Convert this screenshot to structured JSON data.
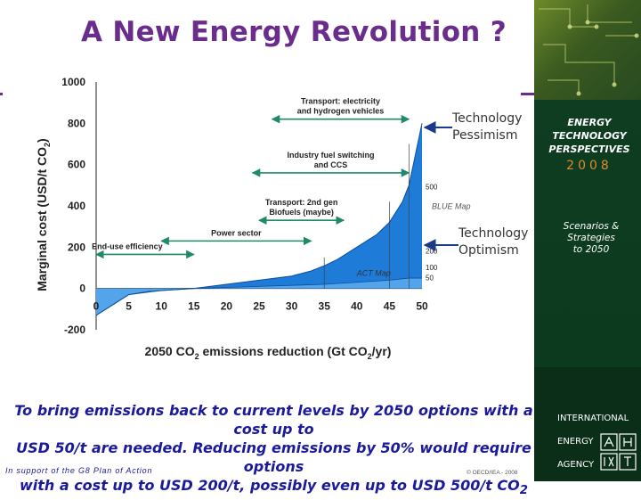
{
  "slide_title": "A New Energy Revolution ?",
  "annotations": {
    "pessimism": [
      "Technology",
      "Pessimism"
    ],
    "optimism": [
      "Technology",
      "Optimism"
    ]
  },
  "sidebar": {
    "etp_title": [
      "ENERGY",
      "TECHNOLOGY",
      "PERSPECTIVES"
    ],
    "etp_year": "2008",
    "etp_sub": [
      "Scenarios &",
      "Strategies",
      "to 2050"
    ],
    "iea_lines": [
      "INTERNATIONAL",
      "ENERGY",
      "AGENCY"
    ]
  },
  "footer": {
    "caption_lines": [
      "To bring emissions back to current levels by 2050 options with a cost up to",
      "USD 50/t are needed. Reducing emissions by 50% would require options",
      "with  a cost up to USD 200/t, possibly even up to USD 500/t CO"
    ],
    "caption_sub": "2",
    "left": "In support of the G8 Plan of Action",
    "right": "© OECD/IEA - 2008"
  },
  "colors": {
    "title": "#6b2d8c",
    "fill": "#1e7bd8",
    "fill_light": "#5aa8ee",
    "arrow": "#1f8a6a",
    "footer": "#1a1a9a",
    "sidebar": "#0b3a1e"
  },
  "chart_data": {
    "type": "area",
    "ylabel": "Marginal cost (USD/t CO",
    "ylabel_sub": "2",
    "ylabel_end": ")",
    "xlabel": "2050 CO",
    "xlabel_sub": "2",
    "xlabel_end": " emissions reduction (Gt CO",
    "xlabel_sub2": "2",
    "xlabel_end2": "/yr)",
    "xlim": [
      0,
      50
    ],
    "ylim": [
      -200,
      1000
    ],
    "xticks": [
      "0",
      "5",
      "10",
      "15",
      "20",
      "25",
      "30",
      "35",
      "40",
      "45",
      "50"
    ],
    "yticks": [
      "1000",
      "800",
      "600",
      "400",
      "200",
      "0",
      "-200"
    ],
    "series": [
      {
        "name": "BLUE Map upper curve",
        "x": [
          0,
          2,
          5,
          8,
          10,
          15,
          20,
          25,
          30,
          33,
          35,
          37,
          40,
          43,
          45,
          47,
          48,
          49,
          50
        ],
        "values": [
          -130,
          -90,
          -30,
          -15,
          -10,
          0,
          20,
          40,
          60,
          85,
          110,
          140,
          200,
          260,
          320,
          420,
          500,
          650,
          800
        ]
      },
      {
        "name": "ACT Map lower curve",
        "x": [
          0,
          5,
          10,
          15,
          20,
          25,
          30,
          35,
          40,
          45,
          48,
          50
        ],
        "values": [
          -130,
          -30,
          -10,
          0,
          5,
          10,
          15,
          20,
          30,
          40,
          50,
          50
        ]
      }
    ],
    "series_labels": [
      "BLUE Map",
      "ACT Map"
    ],
    "right_axis_labels": [
      "500",
      "200",
      "100",
      "50"
    ],
    "right_axis_values": [
      500,
      200,
      100,
      50
    ],
    "ranges": [
      {
        "label": [
          "End-use efficiency"
        ],
        "x0": 0,
        "x1": 15,
        "y": 165
      },
      {
        "label": [
          "Power sector"
        ],
        "x0": 10,
        "x1": 33,
        "y": 230
      },
      {
        "label": [
          "Transport: 2nd gen",
          "Biofuels (maybe)"
        ],
        "x0": 25,
        "x1": 38,
        "y": 330
      },
      {
        "label": [
          "Industry fuel switching",
          "and CCS"
        ],
        "x0": 24,
        "x1": 48,
        "y": 560
      },
      {
        "label": [
          "Transport: electricity",
          "and hydrogen vehicles"
        ],
        "x0": 27,
        "x1": 48,
        "y": 820
      }
    ]
  }
}
